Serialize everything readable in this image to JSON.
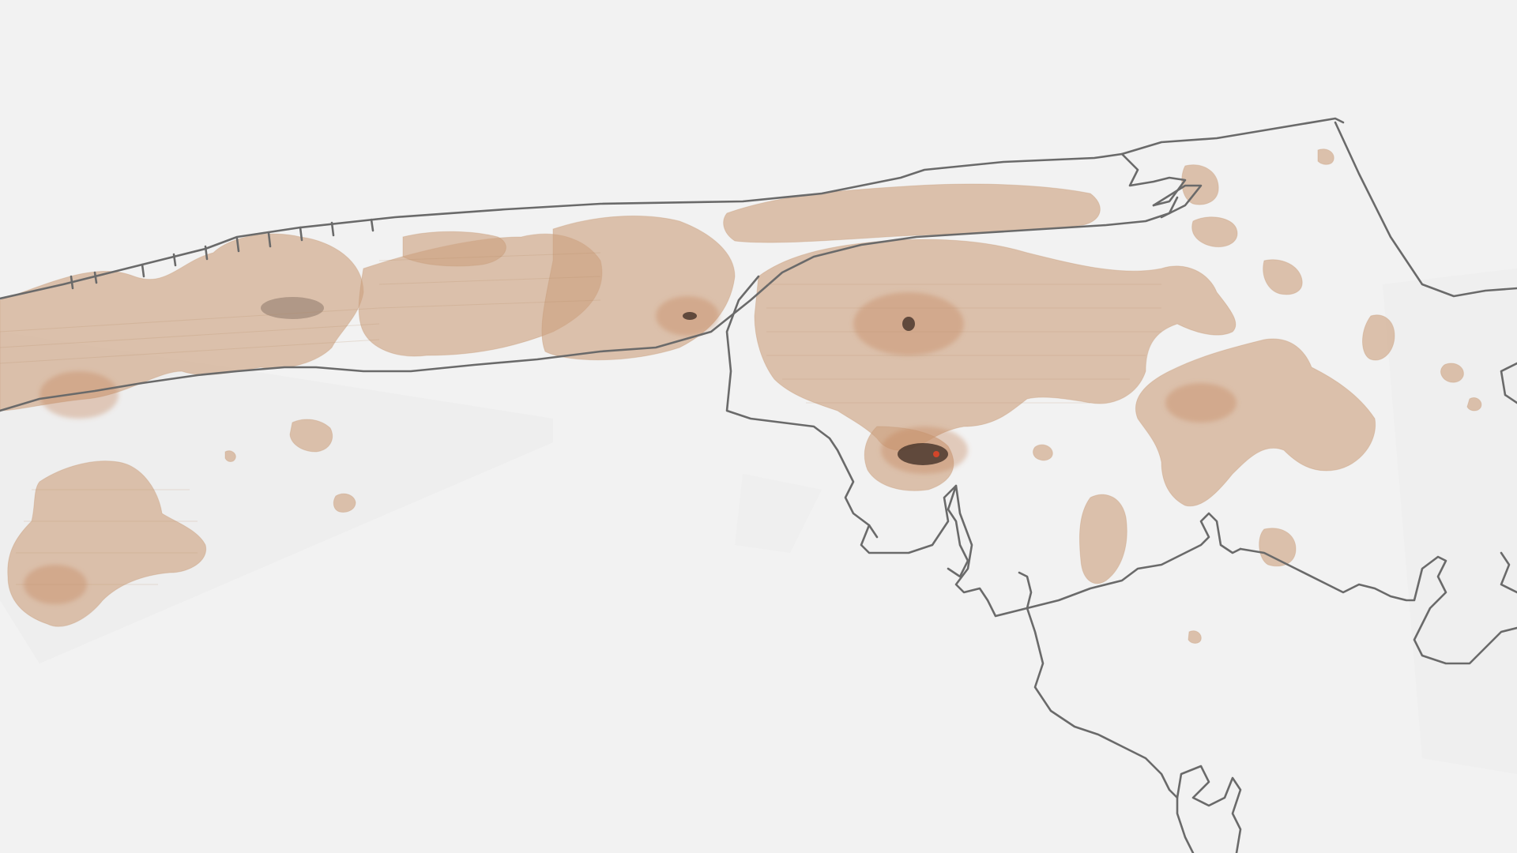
{
  "map": {
    "view": "3d-perspective",
    "basemap": "street-grid",
    "layer": "density-heatmap",
    "colors": {
      "background": "#f2f2f2",
      "boundary": "#6a6a6a",
      "heatmap_fill": "#cda27f",
      "heatmap_hot": "#c47f55",
      "cluster": "#3a2a22",
      "highlight": "#d2452a"
    },
    "clusters": [
      {
        "label": "",
        "intensity": "medium"
      },
      {
        "label": "",
        "intensity": "medium"
      },
      {
        "label": "",
        "intensity": "high"
      }
    ]
  }
}
